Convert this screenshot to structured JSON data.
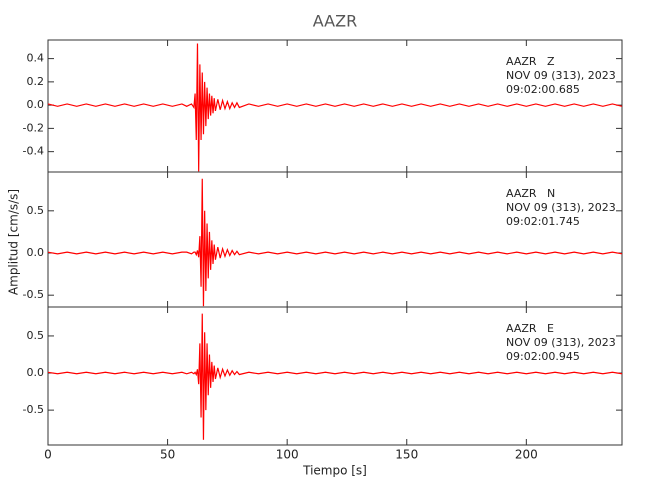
{
  "title": "AAZR",
  "ylabel": "Amplitud [cm/s/s]",
  "chart_data": [
    {
      "type": "line",
      "annotations": [
        "AAZR   Z",
        "NOV 09 (313), 2023",
        "09:02:00.685"
      ],
      "x": [
        0,
        4,
        8,
        12,
        16,
        20,
        24,
        28,
        32,
        36,
        40,
        44,
        48,
        52,
        56,
        58,
        60,
        61,
        61.5,
        62,
        62.5,
        63,
        63.5,
        64,
        64.5,
        65,
        65.5,
        66,
        66.5,
        67,
        67.5,
        68,
        68.5,
        69,
        69.5,
        70,
        71,
        72,
        73,
        74,
        75,
        76,
        77,
        78,
        79,
        80,
        84,
        88,
        92,
        96,
        100,
        104,
        108,
        112,
        116,
        120,
        124,
        128,
        132,
        136,
        140,
        144,
        148,
        152,
        156,
        160,
        164,
        168,
        172,
        176,
        180,
        184,
        188,
        192,
        196,
        200,
        204,
        208,
        212,
        216,
        220,
        224,
        228,
        232,
        236,
        240
      ],
      "series": [
        {
          "name": "Z",
          "color": "#ff0000",
          "values": [
            0.01,
            -0.01,
            0.01,
            -0.01,
            0.01,
            -0.01,
            0.01,
            -0.01,
            0.01,
            -0.01,
            0.01,
            -0.01,
            0.01,
            -0.01,
            0.01,
            -0.01,
            0.01,
            -0.02,
            0.1,
            -0.3,
            0.53,
            -0.57,
            0.35,
            -0.3,
            0.28,
            -0.25,
            0.2,
            -0.18,
            0.15,
            -0.12,
            0.1,
            -0.09,
            0.08,
            -0.07,
            0.06,
            -0.05,
            0.05,
            -0.04,
            0.04,
            -0.03,
            0.03,
            -0.03,
            0.02,
            -0.02,
            0.02,
            -0.02,
            0.01,
            -0.01,
            0.01,
            -0.01,
            0.01,
            -0.01,
            0.01,
            -0.01,
            0.01,
            -0.01,
            0.01,
            -0.01,
            0.01,
            -0.01,
            0.01,
            -0.01,
            0.01,
            -0.01,
            0.01,
            -0.01,
            0.01,
            -0.01,
            0.01,
            -0.01,
            0.01,
            -0.01,
            0.01,
            -0.01,
            0.01,
            -0.01,
            0.01,
            -0.01,
            0.01,
            -0.01,
            0.01,
            -0.01,
            0.01,
            -0.01,
            0.01,
            -0.01
          ]
        }
      ],
      "ylim": [
        -0.575,
        0.56
      ],
      "yticks": [
        0.4,
        0.2,
        {
          "value": 0,
          "label": "0.0"
        },
        -0.2,
        -0.4
      ]
    },
    {
      "type": "line",
      "annotations": [
        "AAZR   N",
        "NOV 09 (313), 2023",
        "09:02:01.745"
      ],
      "x": [
        0,
        4,
        8,
        12,
        16,
        20,
        24,
        28,
        32,
        36,
        40,
        44,
        48,
        52,
        56,
        58,
        60,
        61,
        61.5,
        62,
        62.5,
        63,
        63.5,
        64,
        64.5,
        65,
        65.5,
        66,
        66.5,
        67,
        67.5,
        68,
        68.5,
        69,
        69.5,
        70,
        71,
        72,
        73,
        74,
        75,
        76,
        77,
        78,
        79,
        80,
        84,
        88,
        92,
        96,
        100,
        104,
        108,
        112,
        116,
        120,
        124,
        128,
        132,
        136,
        140,
        144,
        148,
        152,
        156,
        160,
        164,
        168,
        172,
        176,
        180,
        184,
        188,
        192,
        196,
        200,
        204,
        208,
        212,
        216,
        220,
        224,
        228,
        232,
        236,
        240
      ],
      "series": [
        {
          "name": "N",
          "color": "#ff0000",
          "values": [
            0.01,
            -0.01,
            0.01,
            -0.01,
            0.01,
            -0.01,
            0.01,
            -0.01,
            0.01,
            -0.01,
            0.01,
            -0.01,
            0.01,
            -0.01,
            0.01,
            0.01,
            -0.01,
            0.01,
            0.01,
            -0.02,
            0.03,
            -0.05,
            0.2,
            -0.4,
            0.88,
            -0.63,
            0.5,
            -0.45,
            0.35,
            -0.3,
            0.25,
            -0.2,
            0.15,
            -0.13,
            0.1,
            -0.08,
            0.07,
            -0.06,
            0.05,
            -0.04,
            0.04,
            -0.03,
            0.03,
            -0.02,
            0.02,
            -0.02,
            0.01,
            -0.01,
            0.01,
            -0.01,
            0.01,
            -0.01,
            0.01,
            -0.01,
            0.01,
            -0.01,
            0.01,
            -0.01,
            0.01,
            -0.01,
            0.01,
            -0.01,
            0.01,
            -0.01,
            0.01,
            -0.01,
            0.01,
            -0.01,
            0.01,
            -0.01,
            0.01,
            -0.01,
            0.01,
            -0.01,
            0.01,
            -0.01,
            0.01,
            -0.01,
            0.01,
            -0.01,
            0.01,
            -0.01,
            0.01,
            -0.01,
            0.01,
            -0.01
          ]
        }
      ],
      "ylim": [
        -0.64,
        0.96
      ],
      "yticks": [
        0.5,
        {
          "value": 0,
          "label": "0.0"
        },
        -0.5
      ]
    },
    {
      "type": "line",
      "annotations": [
        "AAZR   E",
        "NOV 09 (313), 2023",
        "09:02:00.945"
      ],
      "x": [
        0,
        4,
        8,
        12,
        16,
        20,
        24,
        28,
        32,
        36,
        40,
        44,
        48,
        52,
        56,
        58,
        60,
        61,
        61.5,
        62,
        62.5,
        63,
        63.5,
        64,
        64.5,
        65,
        65.5,
        66,
        66.5,
        67,
        67.5,
        68,
        68.5,
        69,
        69.5,
        70,
        71,
        72,
        73,
        74,
        75,
        76,
        77,
        78,
        79,
        80,
        84,
        88,
        92,
        96,
        100,
        104,
        108,
        112,
        116,
        120,
        124,
        128,
        132,
        136,
        140,
        144,
        148,
        152,
        156,
        160,
        164,
        168,
        172,
        176,
        180,
        184,
        188,
        192,
        196,
        200,
        204,
        208,
        212,
        216,
        220,
        224,
        228,
        232,
        236,
        240
      ],
      "series": [
        {
          "name": "E",
          "color": "#ff0000",
          "values": [
            0.01,
            -0.01,
            0.01,
            -0.01,
            0.01,
            -0.01,
            0.01,
            -0.01,
            0.01,
            -0.01,
            0.01,
            -0.01,
            0.01,
            -0.01,
            0.01,
            -0.01,
            0.01,
            -0.01,
            0.01,
            -0.02,
            0.05,
            -0.15,
            0.4,
            -0.6,
            0.8,
            -0.9,
            0.55,
            -0.5,
            0.4,
            -0.3,
            0.25,
            -0.2,
            0.15,
            -0.12,
            0.1,
            -0.08,
            0.07,
            -0.06,
            0.05,
            -0.04,
            0.04,
            -0.03,
            0.03,
            -0.02,
            0.02,
            -0.02,
            0.01,
            -0.01,
            0.01,
            -0.01,
            0.01,
            -0.01,
            0.01,
            -0.01,
            0.01,
            -0.01,
            0.01,
            -0.01,
            0.01,
            -0.01,
            0.01,
            -0.01,
            0.01,
            -0.01,
            0.01,
            -0.01,
            0.01,
            -0.01,
            0.01,
            -0.01,
            0.01,
            -0.01,
            0.01,
            -0.01,
            0.01,
            -0.01,
            0.01,
            -0.01,
            0.01,
            -0.01,
            0.01,
            -0.01,
            0.01,
            -0.01,
            0.01,
            -0.01
          ]
        }
      ],
      "ylim": [
        -0.97,
        0.89
      ],
      "yticks": [
        0.5,
        {
          "value": 0,
          "label": "0.0"
        },
        -0.5
      ],
      "xlabel": "Tiempo [s]",
      "xlim": [
        0,
        240
      ],
      "xticks": [
        0,
        50,
        100,
        150,
        200
      ]
    }
  ]
}
